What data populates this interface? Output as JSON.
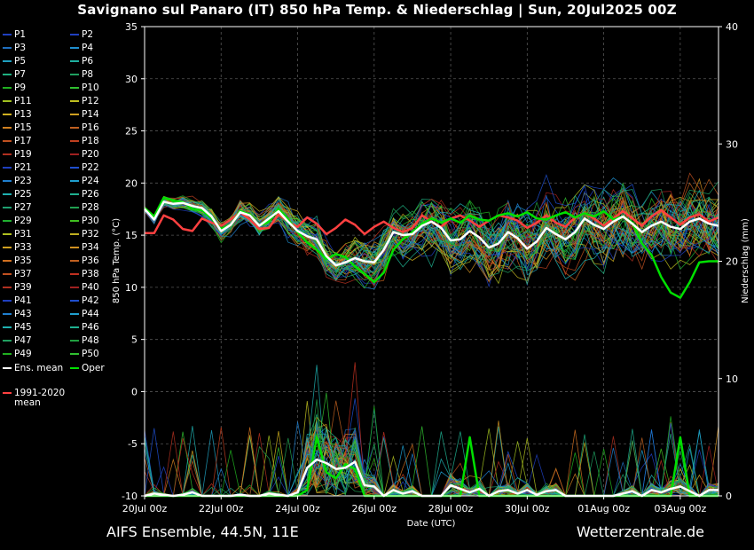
{
  "title": "Savignano sul Panaro  (IT)  850 hPa Temp. & Niederschlag | Sun, 20Jul2025 00Z",
  "footer": {
    "model": "AIFS Ensemble, 44.5N, 11E",
    "site": "Wetterzentrale.de"
  },
  "colors": {
    "background": "#000000",
    "ens_mean": "#ffffff",
    "oper": "#00e000",
    "climate_mean": "#ff4040",
    "grid": "#555555"
  },
  "legend": {
    "members": [
      {
        "label": "P1",
        "color": "#1f3fbf"
      },
      {
        "label": "P2",
        "color": "#1f3fbf"
      },
      {
        "label": "P3",
        "color": "#1f6fbf"
      },
      {
        "label": "P4",
        "color": "#1f8fcf"
      },
      {
        "label": "P5",
        "color": "#1fa0c0"
      },
      {
        "label": "P6",
        "color": "#1fb0a0"
      },
      {
        "label": "P7",
        "color": "#1fb080"
      },
      {
        "label": "P8",
        "color": "#1fa060"
      },
      {
        "label": "P9",
        "color": "#20b020"
      },
      {
        "label": "P10",
        "color": "#30c030"
      },
      {
        "label": "P11",
        "color": "#a0c020"
      },
      {
        "label": "P12",
        "color": "#c0c020"
      },
      {
        "label": "P13",
        "color": "#d0b020"
      },
      {
        "label": "P14",
        "color": "#d0a020"
      },
      {
        "label": "P15",
        "color": "#d08020"
      },
      {
        "label": "P16",
        "color": "#c06020"
      },
      {
        "label": "P17",
        "color": "#c05020"
      },
      {
        "label": "P18",
        "color": "#c04020"
      },
      {
        "label": "P19",
        "color": "#b03020"
      },
      {
        "label": "P20",
        "color": "#a02020"
      },
      {
        "label": "P21",
        "color": "#1f3fbf"
      },
      {
        "label": "P22",
        "color": "#1f4fcf"
      },
      {
        "label": "P23",
        "color": "#1f7fcf"
      },
      {
        "label": "P24",
        "color": "#1f9fcf"
      },
      {
        "label": "P25",
        "color": "#1fb0b0"
      },
      {
        "label": "P26",
        "color": "#1fb090"
      },
      {
        "label": "P27",
        "color": "#1fa070"
      },
      {
        "label": "P28",
        "color": "#20a050"
      },
      {
        "label": "P29",
        "color": "#20b030"
      },
      {
        "label": "P30",
        "color": "#40c020"
      },
      {
        "label": "P31",
        "color": "#b0c020"
      },
      {
        "label": "P32",
        "color": "#c0b020"
      },
      {
        "label": "P33",
        "color": "#d0a020"
      },
      {
        "label": "P34",
        "color": "#d09020"
      },
      {
        "label": "P35",
        "color": "#d07020"
      },
      {
        "label": "P36",
        "color": "#c06020"
      },
      {
        "label": "P37",
        "color": "#c05020"
      },
      {
        "label": "P38",
        "color": "#c03020"
      },
      {
        "label": "P39",
        "color": "#b03020"
      },
      {
        "label": "P40",
        "color": "#a02020"
      },
      {
        "label": "P41",
        "color": "#1f3fbf"
      },
      {
        "label": "P42",
        "color": "#1f4fcf"
      },
      {
        "label": "P43",
        "color": "#1f7fcf"
      },
      {
        "label": "P44",
        "color": "#1f9fcf"
      },
      {
        "label": "P45",
        "color": "#1fb0b0"
      },
      {
        "label": "P46",
        "color": "#1fb090"
      },
      {
        "label": "P47",
        "color": "#20a060"
      },
      {
        "label": "P48",
        "color": "#20a040"
      },
      {
        "label": "P49",
        "color": "#20b020"
      },
      {
        "label": "P50",
        "color": "#30c030"
      }
    ],
    "ens_mean_label": "Ens. mean",
    "oper_label": "Oper",
    "climate_label_line1": "1991-2020",
    "climate_label_line2": "mean"
  },
  "chart_data": {
    "type": "line",
    "xlabel": "Date (UTC)",
    "ylabel": "850 hPa Temp. (°C)",
    "y2label": "Niederschlag (mm)",
    "xlim": [
      0,
      15
    ],
    "ylim": [
      -10,
      35
    ],
    "y2lim": [
      0,
      40
    ],
    "x_ticks": [
      {
        "x": 0,
        "label": "20Jul 00z"
      },
      {
        "x": 2,
        "label": "22Jul 00z"
      },
      {
        "x": 4,
        "label": "24Jul 00z"
      },
      {
        "x": 6,
        "label": "26Jul 00z"
      },
      {
        "x": 8,
        "label": "28Jul 00z"
      },
      {
        "x": 10,
        "label": "30Jul 00z"
      },
      {
        "x": 12,
        "label": "01Aug 00z"
      },
      {
        "x": 14,
        "label": "03Aug 00z"
      }
    ],
    "y_ticks": [
      -10,
      -5,
      0,
      5,
      10,
      15,
      20,
      25,
      30,
      35
    ],
    "y2_ticks": [
      0,
      10,
      20,
      30,
      40
    ],
    "grid": true,
    "x_step_days": 0.25,
    "temperature": {
      "ens_mean": [
        17.5,
        16.5,
        18.2,
        18.0,
        18.1,
        17.8,
        17.6,
        16.8,
        15.4,
        16.0,
        17.2,
        16.9,
        15.9,
        16.6,
        17.3,
        16.3,
        15.4,
        14.9,
        14.6,
        13.0,
        12.1,
        12.4,
        12.8,
        12.5,
        12.4,
        13.6,
        15.3,
        15.0,
        15.1,
        15.9,
        16.3,
        15.7,
        14.5,
        14.6,
        15.4,
        14.8,
        13.8,
        14.2,
        15.3,
        14.7,
        13.7,
        14.4,
        15.7,
        15.1,
        14.6,
        15.3,
        16.6,
        16.0,
        15.6,
        16.3,
        16.8,
        16.1,
        15.3,
        15.9,
        16.3,
        15.8,
        15.6,
        16.3,
        16.6,
        16.1,
        15.9
      ],
      "oper": [
        17.6,
        16.8,
        18.6,
        18.3,
        18.2,
        17.5,
        17.4,
        16.6,
        15.6,
        16.0,
        17.3,
        17.0,
        15.9,
        16.3,
        17.5,
        16.5,
        15.3,
        14.3,
        13.6,
        12.7,
        13.2,
        12.9,
        12.0,
        11.3,
        10.5,
        11.4,
        13.6,
        14.6,
        15.3,
        16.1,
        16.6,
        16.2,
        16.6,
        16.2,
        16.9,
        16.5,
        16.4,
        16.9,
        17.1,
        16.8,
        17.2,
        16.6,
        16.5,
        16.9,
        17.2,
        16.7,
        17.1,
        16.8,
        17.3,
        16.5,
        16.8,
        16.2,
        14.2,
        13.1,
        11.0,
        9.5,
        9.0,
        10.5,
        12.4,
        12.5,
        12.5
      ],
      "climate_mean": [
        15.2,
        15.2,
        16.9,
        16.5,
        15.6,
        15.4,
        16.6,
        16.2,
        15.9,
        16.5,
        17.2,
        16.5,
        15.6,
        15.7,
        17.0,
        16.3,
        15.8,
        16.7,
        16.1,
        15.1,
        15.7,
        16.5,
        16.0,
        15.1,
        15.8,
        16.3,
        15.7,
        15.3,
        15.7,
        16.9,
        16.3,
        15.8,
        16.6,
        16.9,
        16.4,
        15.8,
        16.4,
        16.9,
        16.7,
        16.4,
        15.7,
        16.2,
        16.9,
        16.2,
        15.8,
        16.7,
        17.1,
        16.6,
        15.9,
        16.6,
        17.3,
        16.6,
        15.9,
        16.8,
        17.4,
        16.7,
        16.0,
        16.7,
        17.0,
        16.3,
        16.7
      ]
    },
    "precipitation": {
      "ens_mean": [
        0,
        0.2,
        0.1,
        0,
        0.1,
        0.3,
        0,
        0,
        0,
        0,
        0.1,
        0,
        0,
        0.2,
        0.1,
        0,
        0.3,
        2.4,
        3.1,
        2.8,
        2.3,
        2.4,
        2.9,
        0.9,
        0.8,
        0,
        0.5,
        0.2,
        0.4,
        0,
        0,
        0,
        0.9,
        0.6,
        0.3,
        0.6,
        0,
        0.4,
        0.5,
        0.2,
        0.5,
        0.1,
        0.4,
        0.5,
        0,
        0,
        0,
        0,
        0,
        0,
        0.2,
        0.4,
        0,
        0.5,
        0.3,
        0.6,
        0.8,
        0.4,
        0,
        0.5,
        0.5
      ],
      "oper": [
        0,
        0,
        0,
        0,
        0,
        0,
        0,
        0,
        0,
        0,
        0,
        0,
        0,
        0,
        0,
        0,
        0,
        0.5,
        5.0,
        2.0,
        1.5,
        2.7,
        2.3,
        0,
        0,
        0,
        0,
        0,
        0,
        0,
        0,
        0,
        0,
        0,
        5.0,
        0,
        0,
        0,
        0,
        0,
        0,
        0,
        0,
        0,
        0,
        0,
        0,
        0,
        0,
        0,
        0,
        0,
        0,
        0,
        0,
        0,
        5.0,
        0,
        0,
        0,
        0
      ]
    },
    "member_count": 50
  }
}
